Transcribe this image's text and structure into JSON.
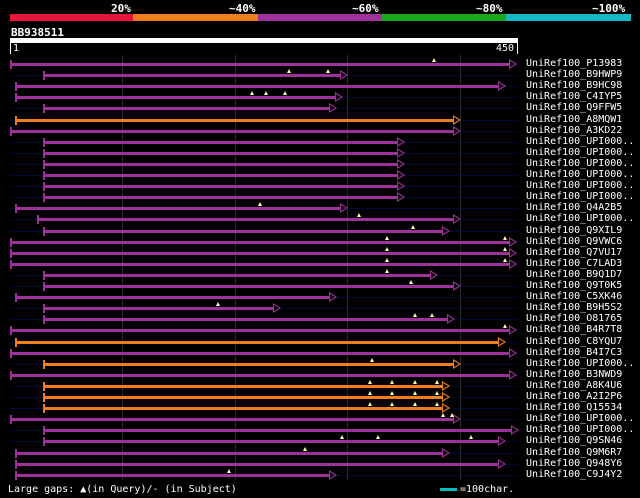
{
  "identity_scale": {
    "labels": [
      "20%",
      "~40%",
      "~60%",
      "~80%",
      "~100%"
    ],
    "colors": [
      "#e8163a",
      "#f07e1a",
      "#a0309b",
      "#18a81a",
      "#12b8c4"
    ]
  },
  "query": {
    "id": "BB938511",
    "start": "1",
    "end": "450",
    "length": 450
  },
  "hits": [
    {
      "name": "UniRef100_P13983",
      "start": 1,
      "end": 450,
      "color": "#a0309b",
      "gaps": [
        377
      ]
    },
    {
      "name": "UniRef100_B9HWP9",
      "start": 30,
      "end": 300,
      "color": "#a0309b",
      "gaps": [
        248,
        283
      ]
    },
    {
      "name": "UniRef100_B9HC98",
      "start": 5,
      "end": 440,
      "color": "#a0309b",
      "gaps": []
    },
    {
      "name": "UniRef100_C4IYP5",
      "start": 5,
      "end": 295,
      "color": "#a0309b",
      "gaps": [
        215,
        228,
        245
      ]
    },
    {
      "name": "UniRef100_Q9FFW5",
      "start": 30,
      "end": 290,
      "color": "#a0309b",
      "gaps": []
    },
    {
      "name": "UniRef100_A8MQW1",
      "start": 5,
      "end": 400,
      "color": "#f07e1a",
      "gaps": []
    },
    {
      "name": "UniRef100_A3KD22",
      "start": 1,
      "end": 400,
      "color": "#a0309b",
      "gaps": []
    },
    {
      "name": "UniRef100_UPI000..",
      "start": 30,
      "end": 350,
      "color": "#a0309b",
      "gaps": []
    },
    {
      "name": "UniRef100_UPI000..",
      "start": 30,
      "end": 350,
      "color": "#a0309b",
      "gaps": []
    },
    {
      "name": "UniRef100_UPI000..",
      "start": 30,
      "end": 350,
      "color": "#a0309b",
      "gaps": []
    },
    {
      "name": "UniRef100_UPI000..",
      "start": 30,
      "end": 350,
      "color": "#a0309b",
      "gaps": []
    },
    {
      "name": "UniRef100_UPI000..",
      "start": 30,
      "end": 350,
      "color": "#a0309b",
      "gaps": []
    },
    {
      "name": "UniRef100_UPI000..",
      "start": 30,
      "end": 350,
      "color": "#a0309b",
      "gaps": []
    },
    {
      "name": "UniRef100_Q4A2B5",
      "start": 5,
      "end": 300,
      "color": "#a0309b",
      "gaps": [
        222
      ]
    },
    {
      "name": "UniRef100_UPI000..",
      "start": 25,
      "end": 400,
      "color": "#a0309b",
      "gaps": [
        310
      ]
    },
    {
      "name": "UniRef100_Q9XIL9",
      "start": 30,
      "end": 390,
      "color": "#a0309b",
      "gaps": [
        358
      ]
    },
    {
      "name": "UniRef100_Q9VWC6",
      "start": 1,
      "end": 450,
      "color": "#a0309b",
      "gaps": [
        335,
        440
      ]
    },
    {
      "name": "UniRef100_Q7VU17",
      "start": 1,
      "end": 450,
      "color": "#a0309b",
      "gaps": [
        335,
        440
      ]
    },
    {
      "name": "UniRef100_C7LAD3",
      "start": 1,
      "end": 450,
      "color": "#a0309b",
      "gaps": [
        335,
        440
      ]
    },
    {
      "name": "UniRef100_B9Q1D7",
      "start": 30,
      "end": 380,
      "color": "#a0309b",
      "gaps": [
        335
      ]
    },
    {
      "name": "UniRef100_Q9T0K5",
      "start": 30,
      "end": 400,
      "color": "#a0309b",
      "gaps": [
        357
      ]
    },
    {
      "name": "UniRef100_C5XK46",
      "start": 5,
      "end": 290,
      "color": "#a0309b",
      "gaps": []
    },
    {
      "name": "UniRef100_B9H5S2",
      "start": 30,
      "end": 240,
      "color": "#a0309b",
      "gaps": [
        185
      ]
    },
    {
      "name": "UniRef100_O81765",
      "start": 30,
      "end": 395,
      "color": "#a0309b",
      "gaps": [
        360,
        375
      ]
    },
    {
      "name": "UniRef100_B4R7T8",
      "start": 1,
      "end": 450,
      "color": "#a0309b",
      "gaps": [
        440
      ]
    },
    {
      "name": "UniRef100_C8YQU7",
      "start": 5,
      "end": 440,
      "color": "#f07e1a",
      "gaps": []
    },
    {
      "name": "UniRef100_B4I7C3",
      "start": 1,
      "end": 450,
      "color": "#a0309b",
      "gaps": []
    },
    {
      "name": "UniRef100_UPI000..",
      "start": 30,
      "end": 400,
      "color": "#f07e1a",
      "gaps": [
        322
      ]
    },
    {
      "name": "UniRef100_B3NWD9",
      "start": 1,
      "end": 450,
      "color": "#a0309b",
      "gaps": []
    },
    {
      "name": "UniRef100_A8K4U6",
      "start": 30,
      "end": 390,
      "color": "#f07e1a",
      "gaps": [
        320,
        340,
        360,
        380
      ]
    },
    {
      "name": "UniRef100_A2I2P6",
      "start": 30,
      "end": 390,
      "color": "#f07e1a",
      "gaps": [
        320,
        340,
        360,
        380
      ]
    },
    {
      "name": "UniRef100_Q15534",
      "start": 30,
      "end": 390,
      "color": "#f07e1a",
      "gaps": [
        320,
        340,
        360,
        380
      ]
    },
    {
      "name": "UniRef100_UPI000..",
      "start": 1,
      "end": 400,
      "color": "#a0309b",
      "gaps": [
        385,
        393
      ]
    },
    {
      "name": "UniRef100_UPI000..",
      "start": 30,
      "end": 455,
      "color": "#a0309b",
      "gaps": []
    },
    {
      "name": "UniRef100_Q9SN46",
      "start": 30,
      "end": 440,
      "color": "#a0309b",
      "gaps": [
        295,
        327,
        410
      ]
    },
    {
      "name": "UniRef100_Q9M6R7",
      "start": 5,
      "end": 390,
      "color": "#a0309b",
      "gaps": [
        262
      ]
    },
    {
      "name": "UniRef100_Q948Y6",
      "start": 5,
      "end": 440,
      "color": "#a0309b",
      "gaps": []
    },
    {
      "name": "UniRef100_C9J4Y2",
      "start": 5,
      "end": 290,
      "color": "#a0309b",
      "gaps": [
        195
      ]
    }
  ],
  "footer": {
    "text": "Large gaps: ▲(in Query)/- (in Subject)",
    "legend": "=100char.",
    "legend_color": "#00bcbc"
  }
}
